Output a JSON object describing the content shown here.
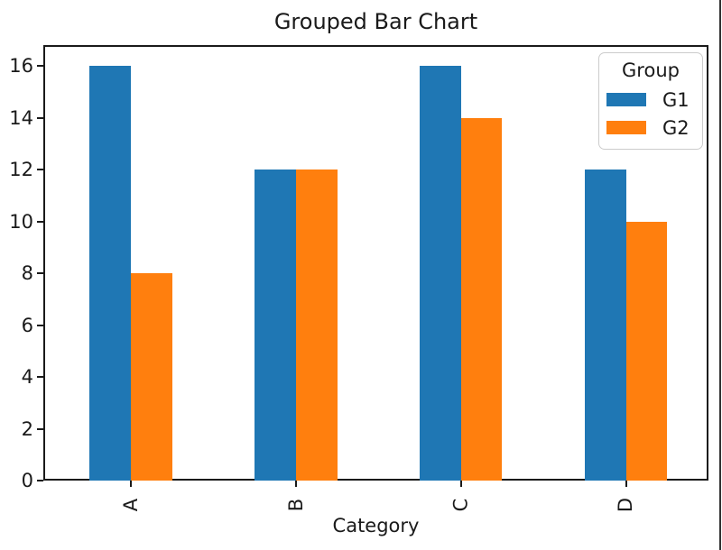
{
  "chart_data": {
    "type": "bar",
    "title": "Grouped Bar Chart",
    "xlabel": "Category",
    "ylabel": "",
    "categories": [
      "A",
      "B",
      "C",
      "D"
    ],
    "series": [
      {
        "name": "G1",
        "color": "#1f77b4",
        "values": [
          16,
          12,
          16,
          12
        ]
      },
      {
        "name": "G2",
        "color": "#ff7f0e",
        "values": [
          8,
          12,
          14,
          10
        ]
      }
    ],
    "yticks": [
      0,
      2,
      4,
      6,
      8,
      10,
      12,
      14,
      16
    ],
    "ylim": [
      0,
      16.8
    ],
    "xlim": [
      -0.53,
      3.5
    ],
    "bar_width_fraction": 0.25,
    "xtick_rotation": 90,
    "grid": false,
    "legend": {
      "title": "Group",
      "position": "upper right"
    }
  },
  "colors": {
    "text": "#1a1a1a",
    "spine": "#1a1a1a",
    "legend_border": "#cccccc",
    "background": "#ffffff",
    "window_edge": "#333333"
  }
}
